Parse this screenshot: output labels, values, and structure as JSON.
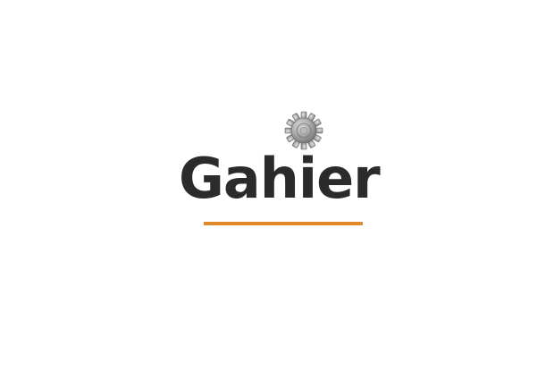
{
  "logo": {
    "text": "Gahier",
    "icon": "gear-icon",
    "colors": {
      "text": "#2b2b2b",
      "underline": "#e28a2b",
      "gear": "#9a9a9a",
      "background": "#ffffff"
    }
  }
}
